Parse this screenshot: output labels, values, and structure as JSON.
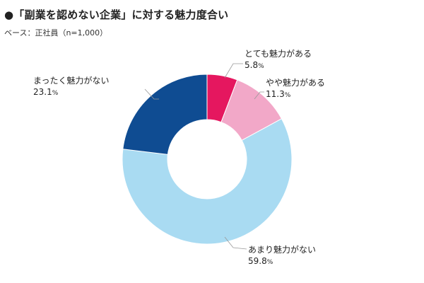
{
  "title": "●「副業を認めない企業」に対する魅力度合い",
  "subtitle": "ベース：正社員（n=1,000）",
  "percent_sign": "%",
  "chart_data": {
    "type": "pie",
    "donut": true,
    "start": "top",
    "direction": "clockwise",
    "unit": "%",
    "slices": [
      {
        "label": "とても魅力がある",
        "value": 5.8,
        "display": "5.8",
        "color": "#e5175f"
      },
      {
        "label": "やや魅力がある",
        "value": 11.3,
        "display": "11.3",
        "color": "#f2a8c8"
      },
      {
        "label": "あまり魅力がない",
        "value": 59.8,
        "display": "59.8",
        "color": "#a9dbf2"
      },
      {
        "label": "まったく魅力がない",
        "value": 23.1,
        "display": "23.1",
        "color": "#0f4c92"
      }
    ]
  }
}
